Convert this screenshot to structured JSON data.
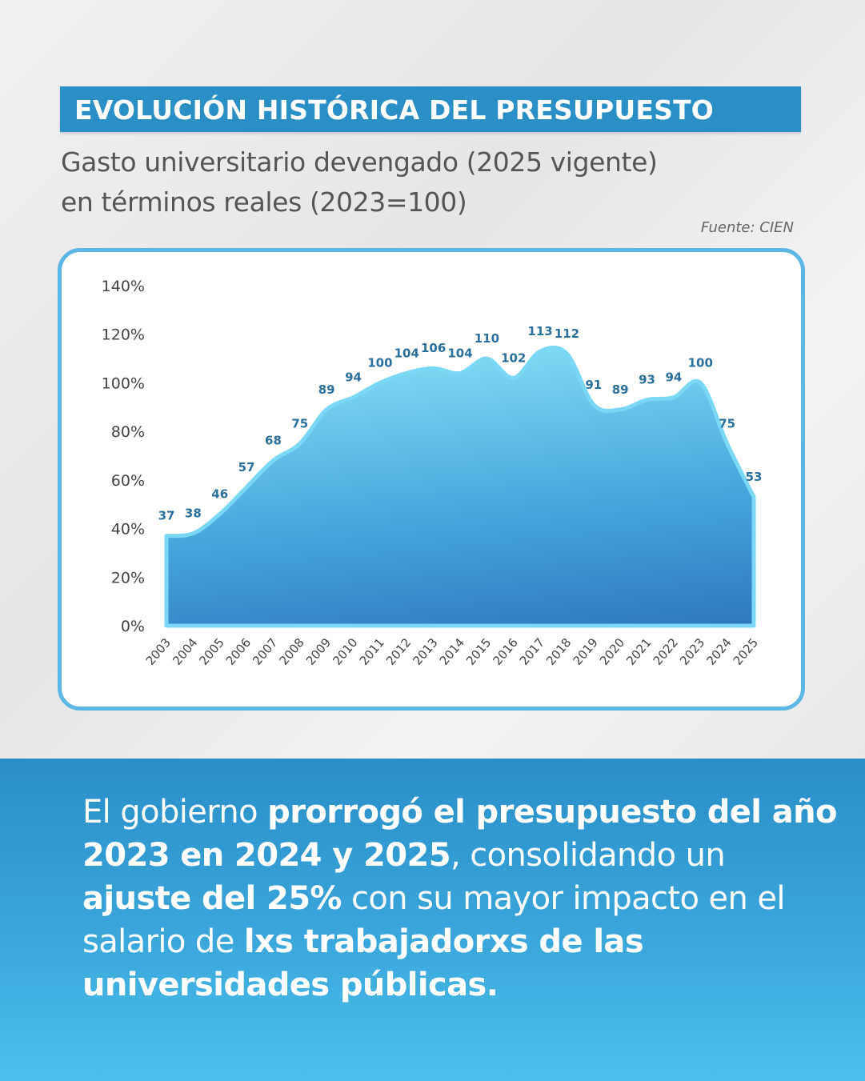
{
  "header": {
    "title": "EVOLUCIÓN HISTÓRICA DEL PRESUPUESTO",
    "subtitle_line1": "Gasto universitario devengado (2025 vigente)",
    "subtitle_line2": "en términos reales (2023=100)",
    "source": "Fuente: CIEN"
  },
  "chart_data": {
    "type": "area",
    "x": [
      "2003",
      "2004",
      "2005",
      "2006",
      "2007",
      "2008",
      "2009",
      "2010",
      "2011",
      "2012",
      "2013",
      "2014",
      "2015",
      "2016",
      "2017",
      "2018",
      "2019",
      "2020",
      "2021",
      "2022",
      "2023",
      "2024",
      "2025"
    ],
    "series": [
      {
        "values": [
          37,
          38,
          46,
          57,
          68,
          75,
          89,
          94,
          100,
          104,
          106,
          104,
          110,
          102,
          113,
          112,
          91,
          89,
          93,
          94,
          100,
          75,
          53
        ]
      }
    ],
    "yticks": [
      "0%",
      "20%",
      "40%",
      "60%",
      "80%",
      "100%",
      "120%",
      "140%"
    ],
    "ylim": [
      0,
      140
    ],
    "grid": false,
    "colors": {
      "fill_top": "#7dd6f2",
      "fill_bottom": "#2f78c0",
      "stroke": "#7ad7f5",
      "data_label": "#2a6f9e",
      "axis_label": "#444444"
    }
  },
  "footer": {
    "parts": [
      {
        "text": "El gobierno ",
        "bold": false
      },
      {
        "text": "prorrogó el presupuesto del año 2023 en 2024 y 2025",
        "bold": true
      },
      {
        "text": ", consolidando un ",
        "bold": false
      },
      {
        "text": "ajuste del 25%",
        "bold": true
      },
      {
        "text": " con su mayor impacto en el salario de ",
        "bold": false
      },
      {
        "text": "lxs trabajadorxs de las universidades públicas.",
        "bold": true
      }
    ]
  }
}
